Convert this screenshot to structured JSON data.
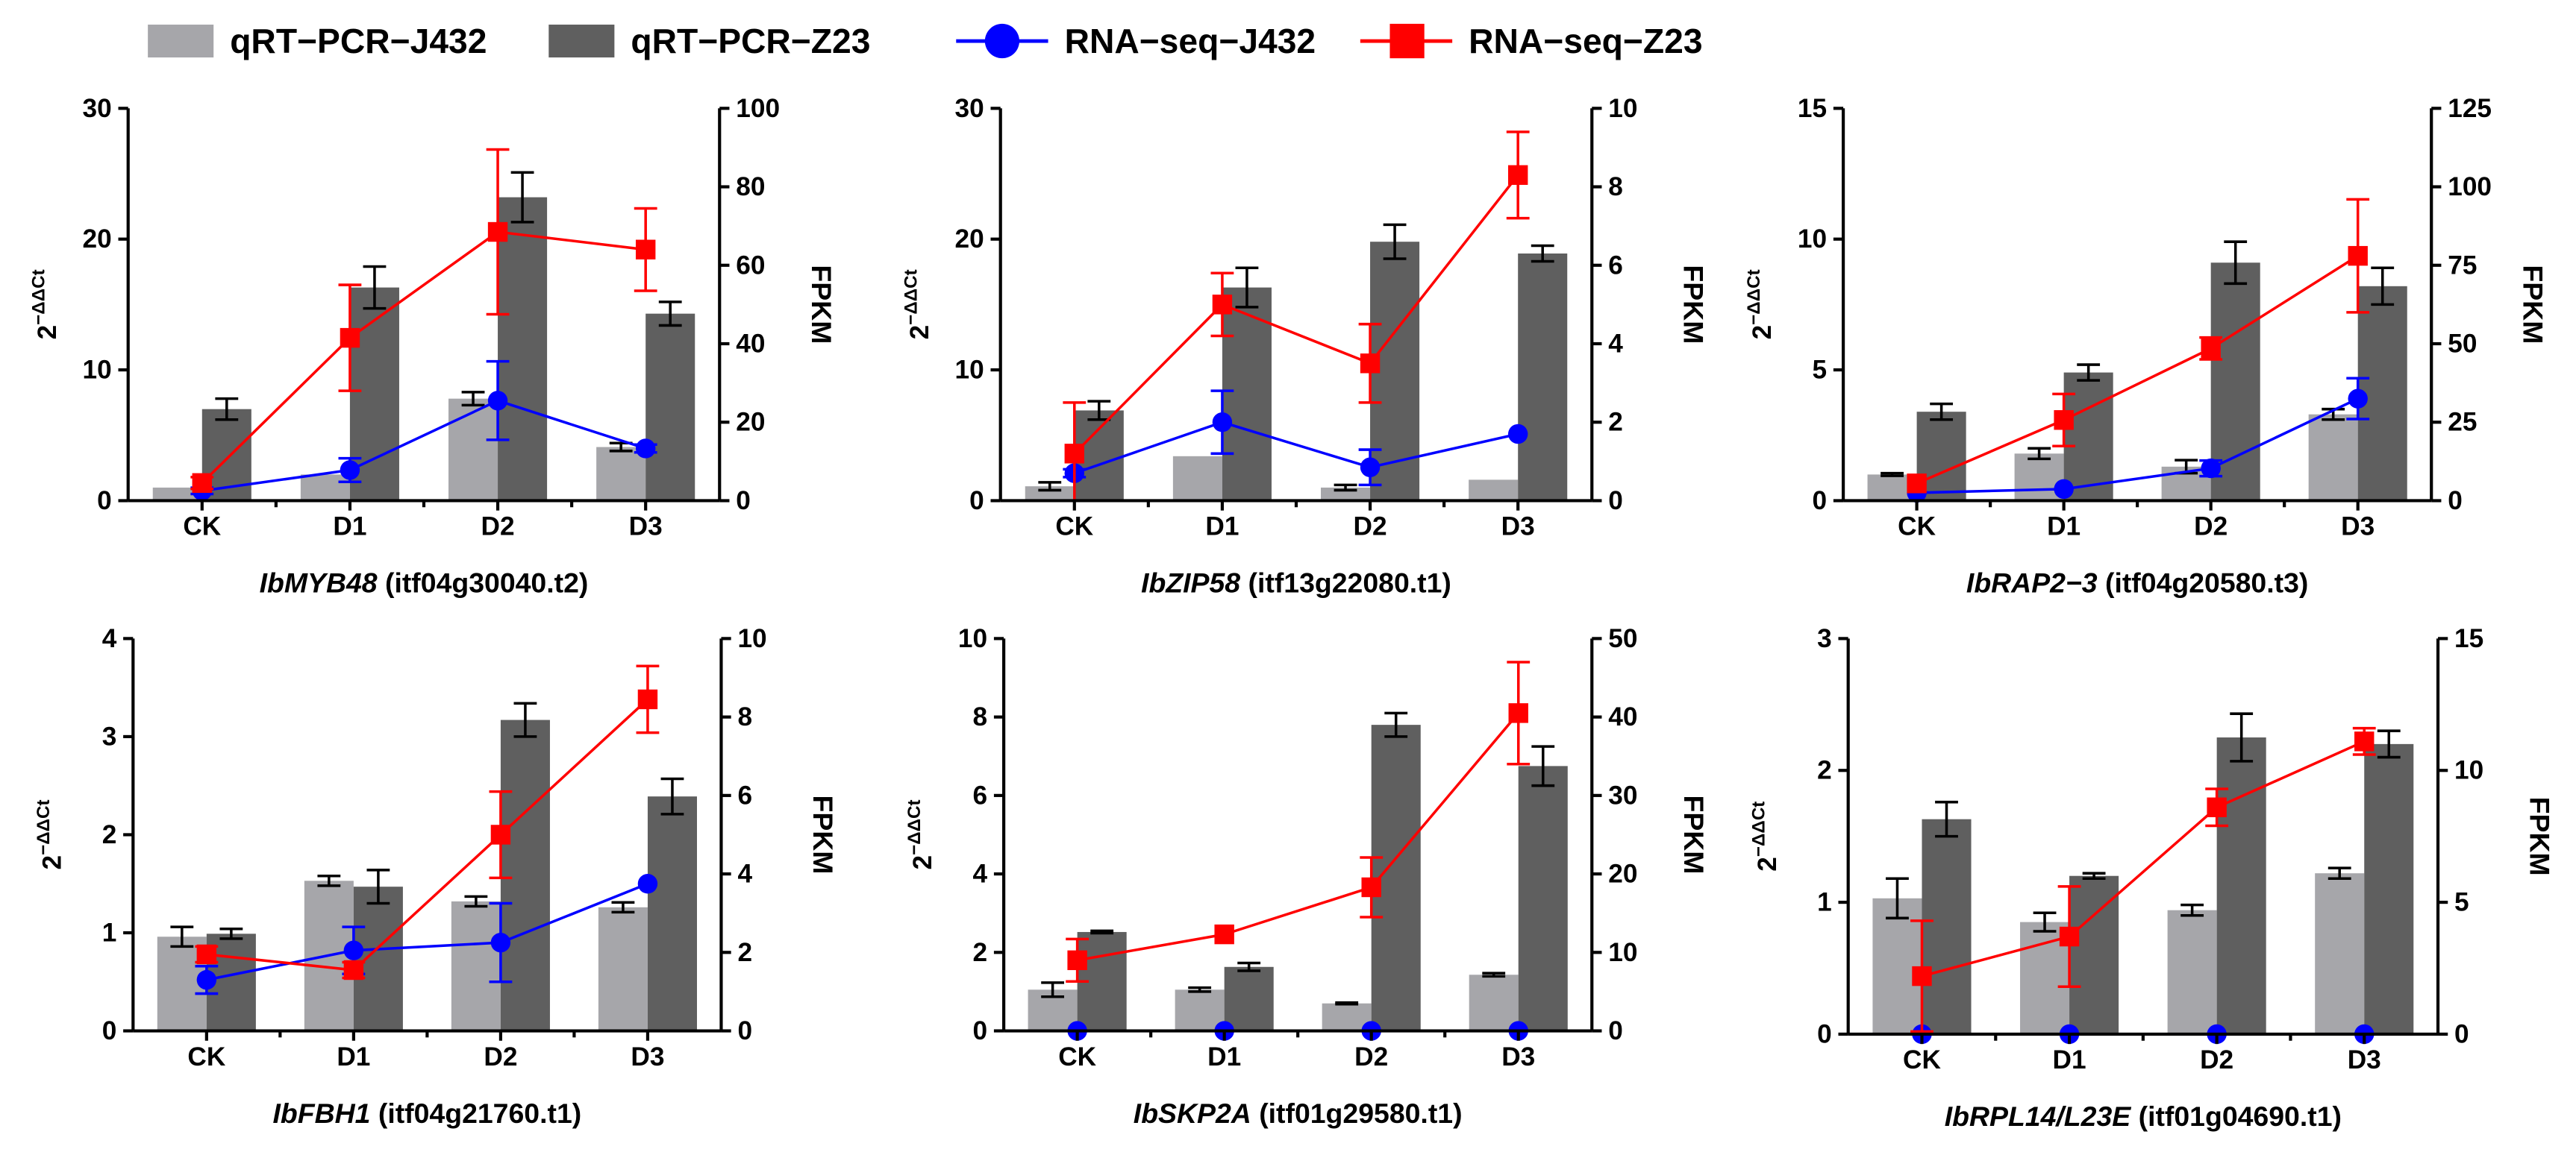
{
  "legend": {
    "items": [
      {
        "label": "qRT−PCR−J432",
        "kind": "bar",
        "color": "#a6a6aa"
      },
      {
        "label": "qRT−PCR−Z23",
        "kind": "bar",
        "color": "#5f5f5f"
      },
      {
        "label": "RNA−seq−J432",
        "kind": "line",
        "marker": "circle",
        "color": "#0000ff"
      },
      {
        "label": "RNA−seq−Z23",
        "kind": "line",
        "marker": "square",
        "color": "#ff0000"
      }
    ]
  },
  "chart_data": [
    {
      "type": "bar+line",
      "categories": [
        "CK",
        "D1",
        "D2",
        "D3"
      ],
      "gene": "IbMYB48",
      "transcript": "(itf04g30040.t2)",
      "ylabel_left": "2",
      "ylabel_left_sup": "−ΔΔCt",
      "ylabel_right": "FPKM",
      "ylim_left": [
        0,
        30
      ],
      "yticks_left": [
        0,
        10,
        20,
        30
      ],
      "ylim_right": [
        0,
        100
      ],
      "yticks_right": [
        0,
        20,
        40,
        60,
        80,
        100
      ],
      "bars_J432": [
        1.0,
        2.0,
        7.8,
        4.1
      ],
      "bars_J432_err": [
        0,
        0,
        0.5,
        0.3
      ],
      "bars_Z23": [
        7.0,
        16.3,
        23.2,
        14.3
      ],
      "bars_Z23_err": [
        0.8,
        1.6,
        1.9,
        0.9
      ],
      "line_J432": [
        2.5,
        7.8,
        25.5,
        13.3
      ],
      "line_J432_err": [
        0.8,
        3,
        10,
        1
      ],
      "line_Z23": [
        4.5,
        41.5,
        68.5,
        64.0
      ],
      "line_Z23_err": [
        1.5,
        13.5,
        21,
        10.5
      ]
    },
    {
      "type": "bar+line",
      "categories": [
        "CK",
        "D1",
        "D2",
        "D3"
      ],
      "gene": "IbZIP58",
      "transcript": "(itf13g22080.t1)",
      "ylabel_left": "2",
      "ylabel_left_sup": "−ΔΔCt",
      "ylabel_right": "FPKM",
      "ylim_left": [
        0,
        30
      ],
      "yticks_left": [
        0,
        10,
        20,
        30
      ],
      "ylim_right": [
        0,
        10
      ],
      "yticks_right": [
        0,
        2,
        4,
        6,
        8,
        10
      ],
      "bars_J432": [
        1.1,
        3.4,
        1.0,
        1.6
      ],
      "bars_J432_err": [
        0.3,
        0,
        0.2,
        0
      ],
      "bars_Z23": [
        6.9,
        16.3,
        19.8,
        18.9
      ],
      "bars_Z23_err": [
        0.7,
        1.5,
        1.3,
        0.6
      ],
      "line_J432": [
        0.7,
        2.0,
        0.85,
        1.7
      ],
      "line_J432_err": [
        0.1,
        0.8,
        0.45,
        0
      ],
      "line_Z23": [
        1.2,
        5.0,
        3.5,
        8.3
      ],
      "line_Z23_err": [
        1.3,
        0.8,
        1.0,
        1.1
      ]
    },
    {
      "type": "bar+line",
      "categories": [
        "CK",
        "D1",
        "D2",
        "D3"
      ],
      "gene": "IbRAP2−3",
      "transcript": "(itf04g20580.t3)",
      "ylabel_left": "2",
      "ylabel_left_sup": "−ΔΔCt",
      "ylabel_right": "FPKM",
      "ylim_left": [
        0,
        15
      ],
      "yticks_left": [
        0,
        5,
        10,
        15
      ],
      "ylim_right": [
        0,
        125
      ],
      "yticks_right": [
        0,
        25,
        50,
        75,
        100,
        125
      ],
      "bars_J432": [
        1.0,
        1.8,
        1.3,
        3.3
      ],
      "bars_J432_err": [
        0.05,
        0.2,
        0.25,
        0.2
      ],
      "bars_Z23": [
        3.4,
        4.9,
        9.1,
        8.2
      ],
      "bars_Z23_err": [
        0.3,
        0.3,
        0.8,
        0.7
      ],
      "line_J432": [
        2.5,
        3.7,
        10.3,
        32.5
      ],
      "line_J432_err": [
        0,
        0,
        2.5,
        6.5
      ],
      "line_Z23": [
        5.5,
        25.7,
        48.5,
        78.0
      ],
      "line_Z23_err": [
        0,
        8.3,
        3.5,
        18
      ]
    },
    {
      "type": "bar+line",
      "categories": [
        "CK",
        "D1",
        "D2",
        "D3"
      ],
      "gene": "IbFBH1",
      "transcript": "(itf04g21760.t1)",
      "ylabel_left": "2",
      "ylabel_left_sup": "−ΔΔCt",
      "ylabel_right": "FPKM",
      "ylim_left": [
        0,
        4
      ],
      "yticks_left": [
        0,
        1,
        2,
        3,
        4
      ],
      "ylim_right": [
        0,
        10
      ],
      "yticks_right": [
        0,
        2,
        4,
        6,
        8,
        10
      ],
      "bars_J432": [
        0.96,
        1.53,
        1.32,
        1.26
      ],
      "bars_J432_err": [
        0.1,
        0.05,
        0.05,
        0.05
      ],
      "bars_Z23": [
        0.99,
        1.47,
        3.17,
        2.39
      ],
      "bars_Z23_err": [
        0.05,
        0.17,
        0.17,
        0.18
      ],
      "line_J432": [
        1.3,
        2.05,
        2.25,
        3.75
      ],
      "line_J432_err": [
        0.35,
        0.6,
        1.0,
        0
      ],
      "line_Z23": [
        1.95,
        1.55,
        5.0,
        8.45
      ],
      "line_Z23_err": [
        0.2,
        0.2,
        1.1,
        0.85
      ]
    },
    {
      "type": "bar+line",
      "categories": [
        "CK",
        "D1",
        "D2",
        "D3"
      ],
      "gene": "IbSKP2A",
      "transcript": "(itf01g29580.t1)",
      "ylabel_left": "2",
      "ylabel_left_sup": "−ΔΔCt",
      "ylabel_right": "FPKM",
      "ylim_left": [
        0,
        10
      ],
      "yticks_left": [
        0,
        2,
        4,
        6,
        8,
        10
      ],
      "ylim_right": [
        0,
        50
      ],
      "yticks_right": [
        0,
        10,
        20,
        30,
        40,
        50
      ],
      "bars_J432": [
        1.05,
        1.05,
        0.7,
        1.43
      ],
      "bars_J432_err": [
        0.18,
        0.05,
        0.02,
        0.04
      ],
      "bars_Z23": [
        2.52,
        1.63,
        7.8,
        6.75
      ],
      "bars_Z23_err": [
        0.03,
        0.1,
        0.3,
        0.5
      ],
      "line_J432": [
        0,
        0,
        0,
        0
      ],
      "line_J432_err": [
        0,
        0,
        0,
        0
      ],
      "line_Z23": [
        9.0,
        12.3,
        18.3,
        40.5
      ],
      "line_Z23_err": [
        2.7,
        0,
        3.8,
        6.5
      ]
    },
    {
      "type": "bar+line",
      "categories": [
        "CK",
        "D1",
        "D2",
        "D3"
      ],
      "gene": "IbRPL14/L23E",
      "transcript": "(itf01g04690.t1)",
      "ylabel_left": "2",
      "ylabel_left_sup": "−ΔΔCt",
      "ylabel_right": "FPKM",
      "ylim_left": [
        0,
        3
      ],
      "yticks_left": [
        0,
        1,
        2,
        3
      ],
      "ylim_right": [
        0,
        15
      ],
      "yticks_right": [
        0,
        5,
        10,
        15
      ],
      "bars_J432": [
        1.03,
        0.85,
        0.94,
        1.22
      ],
      "bars_J432_err": [
        0.15,
        0.07,
        0.04,
        0.04
      ],
      "bars_Z23": [
        1.63,
        1.2,
        2.25,
        2.2
      ],
      "bars_Z23_err": [
        0.13,
        0.02,
        0.18,
        0.1
      ],
      "line_J432": [
        0,
        0,
        0,
        0
      ],
      "line_J432_err": [
        0,
        0,
        0,
        0
      ],
      "line_Z23": [
        2.2,
        3.7,
        8.6,
        11.1
      ],
      "line_Z23_err": [
        2.1,
        1.9,
        0.7,
        0.5
      ]
    }
  ]
}
